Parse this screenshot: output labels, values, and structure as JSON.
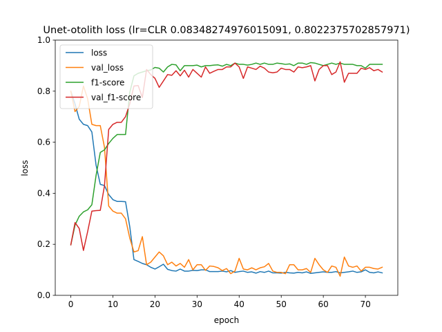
{
  "chart_data": {
    "type": "line",
    "title": "Unet-otolith loss (lr=CLR 0.08348274976015091, 0.8022375702857971)",
    "xlabel": "epoch",
    "ylabel": "loss",
    "xlim": [
      -3.7,
      77.7
    ],
    "ylim": [
      0.0,
      1.0
    ],
    "xticks": [
      0,
      10,
      20,
      30,
      40,
      50,
      60,
      70
    ],
    "yticks": [
      0.0,
      0.2,
      0.4,
      0.6,
      0.8,
      1.0
    ],
    "grid": false,
    "legend_position": "top-left",
    "x": [
      0,
      1,
      2,
      3,
      4,
      5,
      6,
      7,
      8,
      9,
      10,
      11,
      12,
      13,
      14,
      15,
      16,
      17,
      18,
      19,
      20,
      21,
      22,
      23,
      24,
      25,
      26,
      27,
      28,
      29,
      30,
      31,
      32,
      33,
      34,
      35,
      36,
      37,
      38,
      39,
      40,
      41,
      42,
      43,
      44,
      45,
      46,
      47,
      48,
      49,
      50,
      51,
      52,
      53,
      54,
      55,
      56,
      57,
      58,
      59,
      60,
      61,
      62,
      63,
      64,
      65,
      66,
      67,
      68,
      69,
      70,
      71,
      72,
      73,
      74
    ],
    "series": [
      {
        "name": "loss",
        "color": "#1f77b4",
        "values": [
          0.8,
          0.75,
          0.69,
          0.67,
          0.665,
          0.64,
          0.51,
          0.435,
          0.43,
          0.395,
          0.375,
          0.368,
          0.368,
          0.367,
          0.27,
          0.14,
          0.133,
          0.125,
          0.12,
          0.11,
          0.103,
          0.112,
          0.122,
          0.102,
          0.097,
          0.095,
          0.103,
          0.095,
          0.095,
          0.098,
          0.097,
          0.1,
          0.1,
          0.093,
          0.093,
          0.093,
          0.095,
          0.092,
          0.097,
          0.09,
          0.093,
          0.095,
          0.09,
          0.092,
          0.087,
          0.093,
          0.09,
          0.095,
          0.088,
          0.088,
          0.087,
          0.09,
          0.088,
          0.087,
          0.09,
          0.088,
          0.092,
          0.086,
          0.088,
          0.09,
          0.092,
          0.09,
          0.09,
          0.093,
          0.088,
          0.09,
          0.092,
          0.095,
          0.09,
          0.092,
          0.1,
          0.09,
          0.088,
          0.092,
          0.088
        ]
      },
      {
        "name": "val_loss",
        "color": "#ff7f0e",
        "values": [
          0.8,
          0.72,
          0.74,
          0.82,
          0.77,
          0.67,
          0.665,
          0.665,
          0.58,
          0.35,
          0.33,
          0.322,
          0.322,
          0.3,
          0.225,
          0.17,
          0.175,
          0.23,
          0.12,
          0.13,
          0.15,
          0.17,
          0.155,
          0.12,
          0.13,
          0.115,
          0.125,
          0.11,
          0.14,
          0.1,
          0.12,
          0.12,
          0.098,
          0.115,
          0.113,
          0.108,
          0.097,
          0.105,
          0.085,
          0.095,
          0.145,
          0.103,
          0.1,
          0.108,
          0.1,
          0.108,
          0.112,
          0.125,
          0.095,
          0.09,
          0.09,
          0.085,
          0.12,
          0.12,
          0.1,
          0.1,
          0.105,
          0.09,
          0.145,
          0.12,
          0.1,
          0.09,
          0.115,
          0.11,
          0.075,
          0.15,
          0.115,
          0.11,
          0.115,
          0.095,
          0.11,
          0.11,
          0.105,
          0.103,
          0.11
        ]
      },
      {
        "name": "f1-score",
        "color": "#2ca02c",
        "values": [
          0.198,
          0.275,
          0.31,
          0.327,
          0.335,
          0.355,
          0.47,
          0.56,
          0.57,
          0.595,
          0.615,
          0.63,
          0.63,
          0.63,
          0.795,
          0.86,
          0.87,
          0.875,
          0.88,
          0.883,
          0.893,
          0.89,
          0.875,
          0.895,
          0.905,
          0.903,
          0.88,
          0.9,
          0.9,
          0.9,
          0.902,
          0.895,
          0.9,
          0.9,
          0.902,
          0.903,
          0.898,
          0.905,
          0.9,
          0.91,
          0.905,
          0.905,
          0.902,
          0.905,
          0.91,
          0.905,
          0.91,
          0.905,
          0.905,
          0.91,
          0.908,
          0.905,
          0.907,
          0.9,
          0.91,
          0.91,
          0.905,
          0.912,
          0.91,
          0.905,
          0.9,
          0.905,
          0.91,
          0.905,
          0.91,
          0.905,
          0.905,
          0.905,
          0.9,
          0.9,
          0.89,
          0.905,
          0.905,
          0.905,
          0.905
        ]
      },
      {
        "name": "val_f1-score",
        "color": "#d62728",
        "values": [
          0.198,
          0.285,
          0.262,
          0.176,
          0.25,
          0.33,
          0.332,
          0.333,
          0.43,
          0.65,
          0.67,
          0.678,
          0.678,
          0.7,
          0.75,
          0.82,
          0.822,
          0.775,
          0.885,
          0.865,
          0.85,
          0.815,
          0.84,
          0.865,
          0.862,
          0.88,
          0.86,
          0.882,
          0.855,
          0.885,
          0.87,
          0.855,
          0.895,
          0.87,
          0.878,
          0.885,
          0.885,
          0.895,
          0.895,
          0.91,
          0.895,
          0.85,
          0.895,
          0.89,
          0.885,
          0.898,
          0.89,
          0.875,
          0.872,
          0.875,
          0.89,
          0.885,
          0.885,
          0.875,
          0.895,
          0.892,
          0.895,
          0.9,
          0.84,
          0.885,
          0.9,
          0.9,
          0.865,
          0.875,
          0.915,
          0.835,
          0.87,
          0.87,
          0.87,
          0.89,
          0.885,
          0.892,
          0.88,
          0.885,
          0.875
        ]
      }
    ]
  }
}
